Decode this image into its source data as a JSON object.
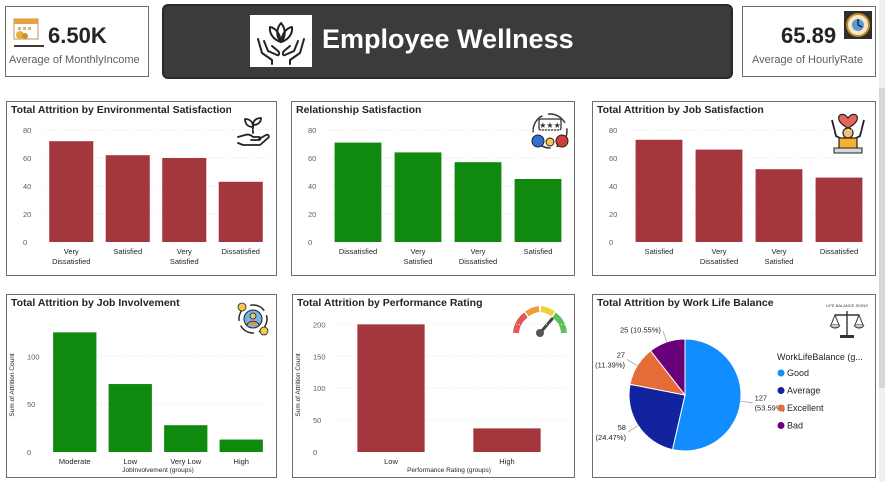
{
  "kpis": {
    "monthly_income": {
      "value": "6.50K",
      "label": "Average of MonthlyIncome"
    },
    "hourly_rate": {
      "value": "65.89",
      "label": "Average of HourlyRate"
    }
  },
  "banner": {
    "title": "Employee Wellness"
  },
  "colors": {
    "red": "#a4373e",
    "green": "#0f8a0f",
    "good": "#118dff",
    "average": "#12239e",
    "excellent": "#e66c37",
    "bad": "#6b007b"
  },
  "chart_data": [
    {
      "id": "env",
      "type": "bar",
      "title": "Total Attrition by Environmental Satisfaction",
      "categories": [
        "Very Dissatisfied",
        "Satisfied",
        "Very Satisfied",
        "Dissatisfied"
      ],
      "values": [
        72,
        62,
        60,
        43
      ],
      "ylim": [
        0,
        80
      ],
      "yticks": [
        0,
        20,
        40,
        60,
        80
      ],
      "color": "red",
      "xlabel": "",
      "ylabel": "",
      "icon": "plant-hand-icon"
    },
    {
      "id": "rel",
      "type": "bar",
      "title": "Relationship Satisfaction",
      "categories": [
        "Dissatisfied",
        "Very Satisfied",
        "Very Dissatisfied",
        "Satisfied"
      ],
      "values": [
        71,
        64,
        57,
        45
      ],
      "ylim": [
        0,
        80
      ],
      "yticks": [
        0,
        20,
        40,
        60,
        80
      ],
      "color": "green",
      "xlabel": "",
      "ylabel": "",
      "icon": "feedback-cycle-icon"
    },
    {
      "id": "job",
      "type": "bar",
      "title": "Total Attrition by Job Satisfaction",
      "categories": [
        "Satisfied",
        "Very Dissatisfied",
        "Very Satisfied",
        "Dissatisfied"
      ],
      "values": [
        73,
        66,
        52,
        46
      ],
      "ylim": [
        0,
        80
      ],
      "yticks": [
        0,
        20,
        40,
        60,
        80
      ],
      "color": "red",
      "xlabel": "",
      "ylabel": "",
      "icon": "happy-worker-icon"
    },
    {
      "id": "inv",
      "type": "bar",
      "title": "Total Attrition by Job Involvement",
      "categories": [
        "Moderate",
        "Low",
        "Very Low",
        "High"
      ],
      "values": [
        125,
        71,
        28,
        13
      ],
      "ylim": [
        0,
        140
      ],
      "yticks": [
        0,
        50,
        100
      ],
      "color": "green",
      "xlabel": "JobInvolvement (groups)",
      "ylabel": "Sum of Attrition Count",
      "icon": "person-cycle-icon"
    },
    {
      "id": "perf",
      "type": "bar",
      "title": "Total Attrition by Performance Rating",
      "categories": [
        "Low",
        "High"
      ],
      "values": [
        200,
        37
      ],
      "ylim": [
        0,
        210
      ],
      "yticks": [
        0,
        50,
        100,
        150,
        200
      ],
      "color": "red",
      "xlabel": "Performance Rating (groups)",
      "ylabel": "Sum of Attrition Count",
      "icon": "gauge-icon"
    },
    {
      "id": "wlb",
      "type": "pie",
      "title": "Total Attrition by Work Life Balance",
      "legend_title": "WorkLifeBalance (g...",
      "slices": [
        {
          "name": "Good",
          "value": 127,
          "label": "127",
          "pct": "(53.59%)",
          "color": "good"
        },
        {
          "name": "Average",
          "value": 58,
          "label": "58",
          "pct": "(24.47%)",
          "color": "average"
        },
        {
          "name": "Excellent",
          "value": 27,
          "label": "27",
          "pct": "(11.39%)",
          "color": "excellent"
        },
        {
          "name": "Bad",
          "value": 25,
          "label": "25 (10.55%)",
          "pct": "",
          "color": "bad"
        }
      ],
      "icon_text": "LIFE BALANCE SIGNS",
      "icon": "work-life-scale-icon"
    }
  ]
}
